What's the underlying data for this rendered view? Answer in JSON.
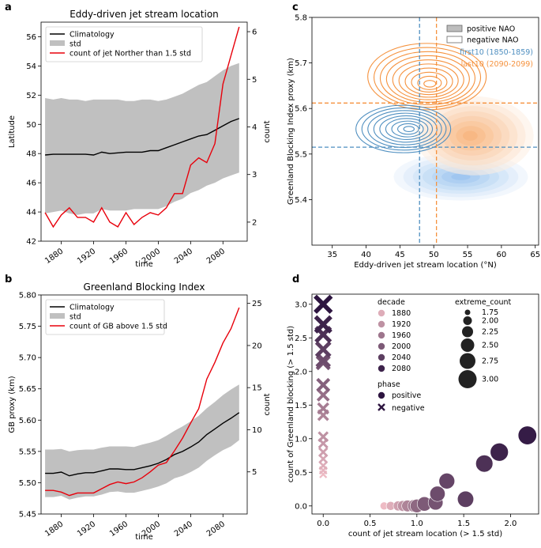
{
  "panels": {
    "a": "a",
    "b": "b",
    "c": "c",
    "d": "d"
  },
  "chart_data": [
    {
      "id": "a",
      "type": "line",
      "title": "Eddy-driven jet stream location",
      "xlabel": "time",
      "ylabel": "Latitude",
      "y2label": "count",
      "xlim": [
        1855,
        2110
      ],
      "ylim": [
        42,
        57
      ],
      "y2lim": [
        1.6,
        6.2
      ],
      "xticks": [
        "1880",
        "1920",
        "1960",
        "2000",
        "2040",
        "2080"
      ],
      "yticks": [
        "42",
        "44",
        "46",
        "48",
        "50",
        "52",
        "54",
        "56"
      ],
      "y2ticks": [
        "2",
        "3",
        "4",
        "5",
        "6"
      ],
      "legend": {
        "position": "top-left",
        "entries": [
          "Climatology",
          "std",
          "count of jet Norther than 1.5 std"
        ]
      },
      "x": [
        1860,
        1870,
        1880,
        1890,
        1900,
        1910,
        1920,
        1930,
        1940,
        1950,
        1960,
        1970,
        1980,
        1990,
        2000,
        2010,
        2020,
        2030,
        2040,
        2050,
        2060,
        2070,
        2080,
        2090,
        2100
      ],
      "climatology": [
        47.9,
        47.95,
        47.95,
        47.95,
        47.95,
        47.95,
        47.9,
        48.1,
        48.0,
        48.05,
        48.1,
        48.1,
        48.1,
        48.2,
        48.2,
        48.4,
        48.6,
        48.8,
        49.0,
        49.2,
        49.3,
        49.6,
        49.9,
        50.2,
        50.4
      ],
      "std_upper": [
        51.8,
        51.7,
        51.8,
        51.7,
        51.7,
        51.6,
        51.7,
        51.7,
        51.7,
        51.7,
        51.6,
        51.6,
        51.7,
        51.7,
        51.6,
        51.7,
        51.9,
        52.1,
        52.4,
        52.7,
        52.9,
        53.3,
        53.7,
        54.0,
        54.2
      ],
      "std_lower": [
        43.9,
        44.0,
        44.1,
        43.9,
        43.8,
        43.9,
        43.9,
        44.2,
        44.1,
        44.1,
        44.1,
        44.2,
        44.2,
        44.2,
        44.2,
        44.4,
        44.7,
        44.9,
        45.3,
        45.5,
        45.8,
        46.0,
        46.3,
        46.5,
        46.7
      ],
      "count": [
        2.2,
        1.9,
        2.15,
        2.3,
        2.1,
        2.1,
        2.0,
        2.3,
        2.0,
        1.9,
        2.2,
        1.95,
        2.1,
        2.2,
        2.15,
        2.3,
        2.6,
        2.6,
        3.2,
        3.35,
        3.25,
        3.65,
        4.9,
        5.5,
        6.1
      ]
    },
    {
      "id": "b",
      "type": "line",
      "title": "Greenland Blocking Index",
      "xlabel": "time",
      "ylabel": "GB proxy (km)",
      "y2label": "count",
      "xlim": [
        1855,
        2110
      ],
      "ylim": [
        5.45,
        5.8
      ],
      "y2lim": [
        0,
        26
      ],
      "xticks": [
        "1880",
        "1920",
        "1960",
        "2000",
        "2040",
        "2080"
      ],
      "yticks": [
        "5.45",
        "5.50",
        "5.55",
        "5.60",
        "5.65",
        "5.70",
        "5.75",
        "5.80"
      ],
      "y2ticks": [
        "5",
        "10",
        "15",
        "20",
        "25"
      ],
      "legend": {
        "position": "top-left",
        "entries": [
          "Climatology",
          "std",
          "count of GB above 1.5 std"
        ]
      },
      "x": [
        1860,
        1870,
        1880,
        1890,
        1900,
        1910,
        1920,
        1930,
        1940,
        1950,
        1960,
        1970,
        1980,
        1990,
        2000,
        2010,
        2020,
        2030,
        2040,
        2050,
        2060,
        2070,
        2080,
        2090,
        2100
      ],
      "climatology": [
        5.515,
        5.515,
        5.517,
        5.511,
        5.514,
        5.516,
        5.516,
        5.519,
        5.522,
        5.522,
        5.521,
        5.521,
        5.524,
        5.527,
        5.531,
        5.537,
        5.545,
        5.55,
        5.557,
        5.565,
        5.577,
        5.586,
        5.595,
        5.603,
        5.612
      ],
      "std_upper": [
        5.553,
        5.553,
        5.554,
        5.55,
        5.552,
        5.553,
        5.553,
        5.556,
        5.558,
        5.558,
        5.558,
        5.557,
        5.561,
        5.564,
        5.568,
        5.575,
        5.583,
        5.59,
        5.598,
        5.607,
        5.619,
        5.629,
        5.64,
        5.649,
        5.657
      ],
      "std_lower": [
        5.477,
        5.477,
        5.479,
        5.473,
        5.476,
        5.478,
        5.478,
        5.481,
        5.485,
        5.486,
        5.484,
        5.484,
        5.487,
        5.49,
        5.494,
        5.499,
        5.507,
        5.511,
        5.517,
        5.524,
        5.535,
        5.544,
        5.552,
        5.558,
        5.568
      ],
      "count": [
        2.8,
        2.8,
        2.6,
        2.2,
        2.5,
        2.5,
        2.5,
        3.0,
        3.5,
        3.8,
        3.6,
        3.8,
        4.3,
        5.0,
        5.8,
        6.1,
        7.5,
        9.0,
        10.8,
        12.5,
        16.0,
        18.0,
        20.3,
        22.0,
        24.5
      ]
    },
    {
      "id": "c",
      "type": "contour",
      "xlabel": "Eddy-driven jet stream location (°N)",
      "ylabel": "Greenland Blocking Index proxy (km)",
      "xlim": [
        32,
        65.5
      ],
      "ylim": [
        5.3,
        5.8
      ],
      "xticks": [
        "35",
        "40",
        "45",
        "50",
        "55",
        "60",
        "65"
      ],
      "yticks": [
        "5.4",
        "5.5",
        "5.6",
        "5.7",
        "5.8"
      ],
      "legend": {
        "position": "top-right",
        "entries": [
          "positive NAO",
          "negative NAO",
          "first10 (1850-1859)",
          "last10 (2090-2099)"
        ]
      },
      "colors": {
        "first10": "#4f8fc0",
        "last10": "#f5923e"
      },
      "first10_mean": {
        "x": 47.9,
        "y": 5.515
      },
      "last10_mean": {
        "x": 50.4,
        "y": 5.612
      },
      "positive_first10_center": {
        "x": 54,
        "y": 5.45
      },
      "positive_last10_center": {
        "x": 56,
        "y": 5.54
      },
      "negative_first10_center": {
        "x": 45.5,
        "y": 5.555
      },
      "negative_last10_center": {
        "x": 49,
        "y": 5.67
      }
    },
    {
      "id": "d",
      "type": "scatter",
      "xlabel": "count of jet stream location (> 1.5 std)",
      "ylabel": "count of Greenland blocking (> 1.5 std)",
      "xlim": [
        -0.12,
        2.3
      ],
      "ylim": [
        -0.12,
        3.15
      ],
      "xticks": [
        "0.0",
        "0.5",
        "1.0",
        "1.5",
        "2.0"
      ],
      "yticks": [
        "0.0",
        "0.5",
        "1.0",
        "1.5",
        "2.0",
        "2.5",
        "3.0"
      ],
      "legend_decade_title": "decade",
      "legend_decades": [
        "1880",
        "1920",
        "1960",
        "2000",
        "2040",
        "2080"
      ],
      "legend_size_title": "extreme_count",
      "legend_sizes": [
        "1.75",
        "2.00",
        "2.25",
        "2.50",
        "2.75",
        "3.00"
      ],
      "legend_phase_title": "phase",
      "legend_phases": [
        "positive",
        "negative"
      ],
      "positive_points": [
        {
          "x": 0.65,
          "y": 0.0,
          "decade": 1860
        },
        {
          "x": 0.72,
          "y": 0.0,
          "decade": 1880
        },
        {
          "x": 0.8,
          "y": 0.0,
          "decade": 1900
        },
        {
          "x": 0.85,
          "y": 0.0,
          "decade": 1920
        },
        {
          "x": 0.9,
          "y": 0.0,
          "decade": 1940
        },
        {
          "x": 0.97,
          "y": 0.0,
          "decade": 1960
        },
        {
          "x": 1.0,
          "y": 0.0,
          "decade": 1980
        },
        {
          "x": 1.08,
          "y": 0.03,
          "decade": 2000
        },
        {
          "x": 1.2,
          "y": 0.05,
          "decade": 2010
        },
        {
          "x": 1.22,
          "y": 0.18,
          "decade": 2020
        },
        {
          "x": 1.32,
          "y": 0.37,
          "decade": 2030
        },
        {
          "x": 1.52,
          "y": 0.1,
          "decade": 2040
        },
        {
          "x": 1.72,
          "y": 0.63,
          "decade": 2060
        },
        {
          "x": 1.88,
          "y": 0.8,
          "decade": 2080
        },
        {
          "x": 2.18,
          "y": 1.05,
          "decade": 2090
        }
      ],
      "negative_points": [
        {
          "x": 0.0,
          "y": 0.47,
          "decade": 1860
        },
        {
          "x": 0.0,
          "y": 0.53,
          "decade": 1870
        },
        {
          "x": 0.0,
          "y": 0.6,
          "decade": 1880
        },
        {
          "x": 0.0,
          "y": 0.7,
          "decade": 1890
        },
        {
          "x": 0.0,
          "y": 0.8,
          "decade": 1900
        },
        {
          "x": 0.0,
          "y": 0.93,
          "decade": 1910
        },
        {
          "x": 0.0,
          "y": 1.03,
          "decade": 1920
        },
        {
          "x": 0.0,
          "y": 1.35,
          "decade": 1940
        },
        {
          "x": 0.0,
          "y": 1.45,
          "decade": 1950
        },
        {
          "x": 0.0,
          "y": 1.65,
          "decade": 1970
        },
        {
          "x": 0.0,
          "y": 1.8,
          "decade": 1990
        },
        {
          "x": 0.0,
          "y": 2.13,
          "decade": 2010
        },
        {
          "x": 0.0,
          "y": 2.17,
          "decade": 2020
        },
        {
          "x": 0.0,
          "y": 2.33,
          "decade": 2040
        },
        {
          "x": 0.0,
          "y": 2.55,
          "decade": 2060
        },
        {
          "x": 0.0,
          "y": 2.7,
          "decade": 2080
        },
        {
          "x": 0.0,
          "y": 3.0,
          "decade": 2100
        }
      ]
    }
  ]
}
